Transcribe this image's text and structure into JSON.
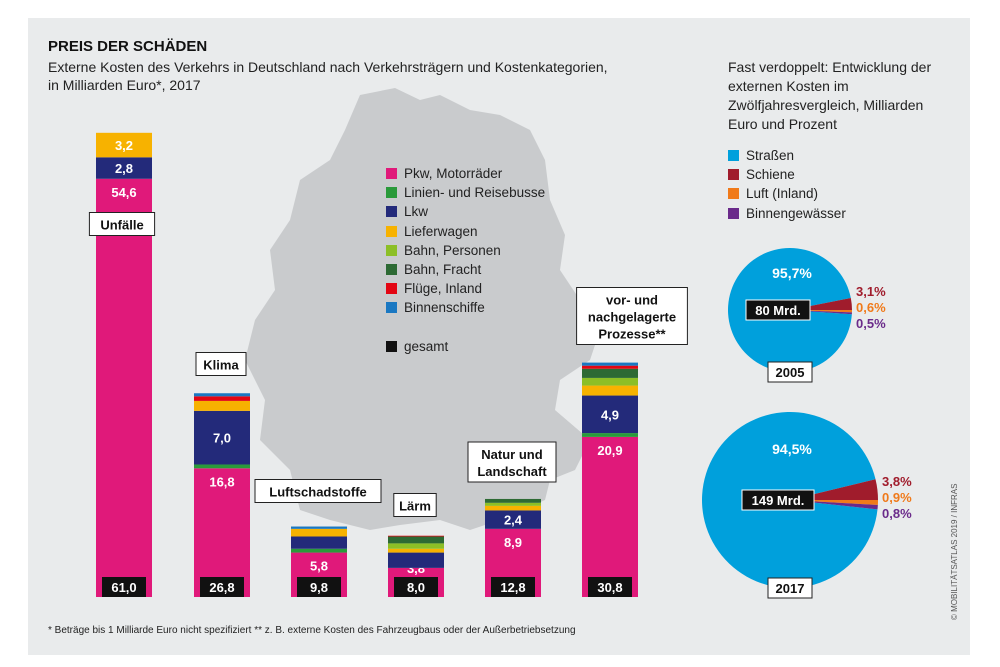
{
  "title": "PREIS DER SCHÄDEN",
  "subtitle": "Externe Kosten des Verkehrs in Deutschland nach Verkehrsträgern und Kostenkategorien, in Milliarden Euro*, 2017",
  "footnote": "* Beträge bis 1 Milliarde Euro nicht spezifiziert  ** z. B. externe Kosten des Fahrzeugbaus oder der Außerbetriebsetzung",
  "credit": "© MOBILITÄTSATLAS 2019 / INFRAS",
  "chart_data": [
    {
      "type": "bar",
      "stacked": true,
      "categories": [
        "Unfälle",
        "Klima",
        "Luftschadstoffe",
        "Lärm",
        "Natur und Landschaft",
        "vor- und nachgelagerte Prozesse**"
      ],
      "totals": [
        "61,0",
        "26,8",
        "9,8",
        "8,0",
        "12,8",
        "30,8"
      ],
      "total_values": [
        61.0,
        26.8,
        9.8,
        8.0,
        12.8,
        30.8
      ],
      "series": [
        {
          "name": "Pkw, Motorräder",
          "color": "#e0197a",
          "values": [
            54.6,
            16.8,
            5.8,
            3.8,
            8.9,
            20.9
          ],
          "labels": [
            "54,6",
            "16,8",
            "5,8",
            "3,8",
            "8,9",
            "20,9"
          ]
        },
        {
          "name": "Linien- und Reisebusse",
          "color": "#2a9a3a",
          "values": [
            0,
            0.5,
            0.5,
            0,
            0,
            0.5
          ],
          "labels": [
            "",
            "",
            "",
            "",
            "",
            ""
          ]
        },
        {
          "name": "Lkw",
          "color": "#232a7a",
          "values": [
            2.8,
            7.0,
            1.6,
            2.0,
            2.4,
            4.9
          ],
          "labels": [
            "2,8",
            "7,0",
            "",
            "",
            "2,4",
            "4,9"
          ]
        },
        {
          "name": "Lieferwagen",
          "color": "#f7b200",
          "values": [
            3.2,
            1.3,
            1.0,
            0.5,
            0.6,
            1.3
          ],
          "labels": [
            "3,2",
            "",
            "",
            "",
            "",
            ""
          ]
        },
        {
          "name": "Bahn, Personen",
          "color": "#8cbf26",
          "values": [
            0,
            0,
            0,
            0.7,
            0.4,
            1.0
          ],
          "labels": [
            "",
            "",
            "",
            "",
            "",
            ""
          ]
        },
        {
          "name": "Bahn, Fracht",
          "color": "#2d6a34",
          "values": [
            0,
            0,
            0,
            0.9,
            0.5,
            1.2
          ],
          "labels": [
            "",
            "",
            "",
            "",
            "",
            ""
          ]
        },
        {
          "name": "Flüge, Inland",
          "color": "#e30613",
          "values": [
            0,
            0.6,
            0,
            0.1,
            0,
            0.4
          ],
          "labels": [
            "",
            "",
            "",
            "",
            "",
            ""
          ]
        },
        {
          "name": "Binnenschiffe",
          "color": "#1a78c2",
          "values": [
            0,
            0.4,
            0.3,
            0,
            0,
            0.4
          ],
          "labels": [
            "",
            "",
            "",
            "",
            "",
            ""
          ]
        }
      ],
      "legend_extra": {
        "name": "gesamt",
        "color": "#111111"
      }
    },
    {
      "type": "pie",
      "title": "Fast verdoppelt: Entwicklung der externen Kosten im Zwölfjahresvergleich, Milliarden Euro und Prozent",
      "categories": [
        "Straßen",
        "Schiene",
        "Luft (Inland)",
        "Binnengewässer"
      ],
      "colors": [
        "#00a0dc",
        "#a01c2c",
        "#f07a1a",
        "#6a2a8a"
      ],
      "pies": [
        {
          "year": "2005",
          "total": "80 Mrd.",
          "values": [
            95.7,
            3.1,
            0.6,
            0.5
          ],
          "labels": [
            "95,7%",
            "3,1%",
            "0,6%",
            "0,5%"
          ]
        },
        {
          "year": "2017",
          "total": "149 Mrd.",
          "values": [
            94.5,
            3.8,
            0.9,
            0.8
          ],
          "labels": [
            "94,5%",
            "3,8%",
            "0,9%",
            "0,8%"
          ]
        }
      ]
    }
  ]
}
